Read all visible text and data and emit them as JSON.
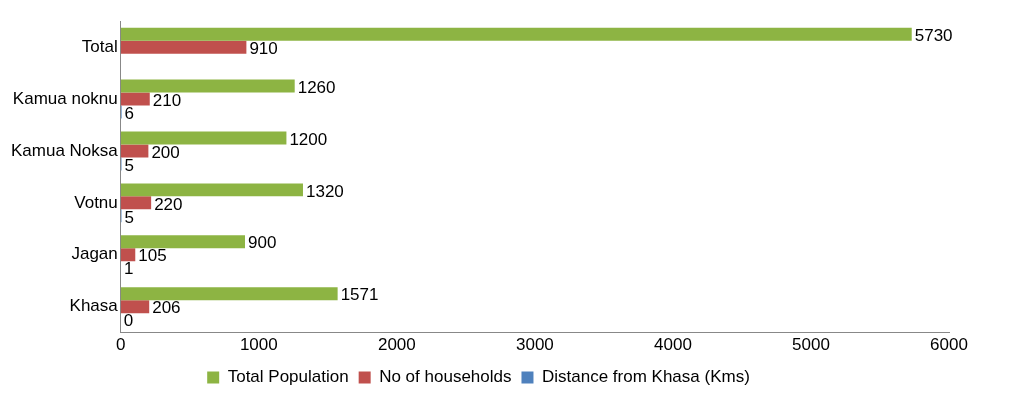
{
  "chart_data": {
    "type": "bar",
    "orientation": "horizontal",
    "categories": [
      "Total",
      "Kamua noknu",
      "Kamua Noksa",
      "Votnu",
      "Jagan",
      "Khasa"
    ],
    "series": [
      {
        "name": "Total Population",
        "color": "#8db443",
        "values": [
          5730,
          1260,
          1200,
          1320,
          900,
          1571
        ]
      },
      {
        "name": "No of households",
        "color": "#c0504d",
        "values": [
          910,
          210,
          200,
          220,
          105,
          206
        ]
      },
      {
        "name": "Distance from Khasa (Kms)",
        "color": "#4f81bd",
        "values": [
          null,
          6,
          5,
          5,
          1,
          0
        ]
      }
    ],
    "xlim": [
      0,
      6000
    ],
    "xticks": [
      0,
      1000,
      2000,
      3000,
      4000,
      5000,
      6000
    ],
    "grid": false,
    "legend": "bottom",
    "data_labels": true
  }
}
